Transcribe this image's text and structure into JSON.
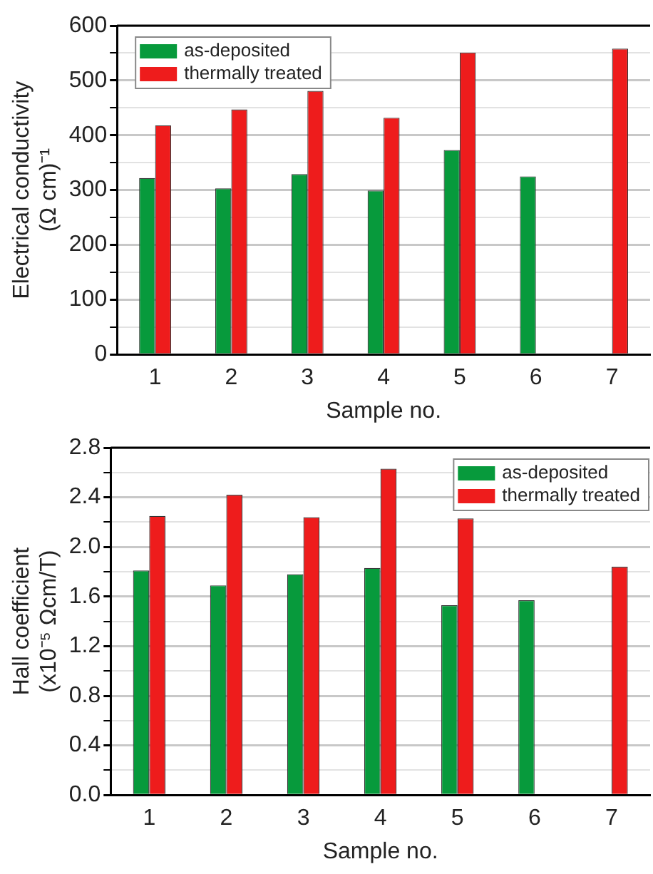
{
  "chart_data": [
    {
      "type": "bar",
      "ylabel": "Electrical conductivity\n(Ω cm)⁻¹",
      "xlabel": "Sample no.",
      "categories": [
        "1",
        "2",
        "3",
        "4",
        "5",
        "6",
        "7"
      ],
      "series": [
        {
          "name": "as-deposited",
          "color": "#079a3c",
          "values": [
            322,
            303,
            329,
            299,
            373,
            325,
            null
          ]
        },
        {
          "name": "thermally treated",
          "color": "#ee1c1c",
          "values": [
            418,
            447,
            481,
            432,
            551,
            null,
            558
          ]
        }
      ],
      "ylim": [
        0,
        600
      ],
      "yticks": [
        0,
        {
          "value": 50,
          "label": null
        },
        100,
        {
          "value": 150,
          "label": null
        },
        200,
        {
          "value": 250,
          "label": null
        },
        300,
        {
          "value": 350,
          "label": null
        },
        400,
        {
          "value": 450,
          "label": null
        },
        500,
        {
          "value": 550,
          "label": null
        },
        600
      ],
      "grid": "y",
      "legend": "top left"
    },
    {
      "type": "bar",
      "ylabel": "Hall coefficient\n(x10⁻⁵ Ωcm/T)",
      "xlabel": "Sample no.",
      "categories": [
        "1",
        "2",
        "3",
        "4",
        "5",
        "6",
        "7"
      ],
      "series": [
        {
          "name": "as-deposited",
          "color": "#079a3c",
          "values": [
            1.81,
            1.69,
            1.78,
            1.83,
            1.53,
            1.57,
            null
          ]
        },
        {
          "name": "thermally treated",
          "color": "#ee1c1c",
          "values": [
            2.25,
            2.42,
            2.24,
            2.63,
            2.23,
            null,
            1.84
          ]
        }
      ],
      "ylim": [
        0,
        2.8
      ],
      "yticks": [
        {
          "value": 0,
          "label": "0.0"
        },
        {
          "value": 0.2,
          "label": null
        },
        {
          "value": 0.4,
          "label": "0.4"
        },
        {
          "value": 0.6,
          "label": null
        },
        {
          "value": 0.8,
          "label": "0.8"
        },
        {
          "value": 1.0,
          "label": null
        },
        {
          "value": 1.2,
          "label": "1.2"
        },
        {
          "value": 1.4,
          "label": null
        },
        {
          "value": 1.6,
          "label": "1.6"
        },
        {
          "value": 1.8,
          "label": null
        },
        {
          "value": 2.0,
          "label": "2.0"
        },
        {
          "value": 2.2,
          "label": null
        },
        {
          "value": 2.4,
          "label": "2.4"
        },
        {
          "value": 2.6,
          "label": null
        },
        {
          "value": 2.8,
          "label": "2.8"
        }
      ],
      "grid": "y",
      "legend": "top right"
    }
  ]
}
